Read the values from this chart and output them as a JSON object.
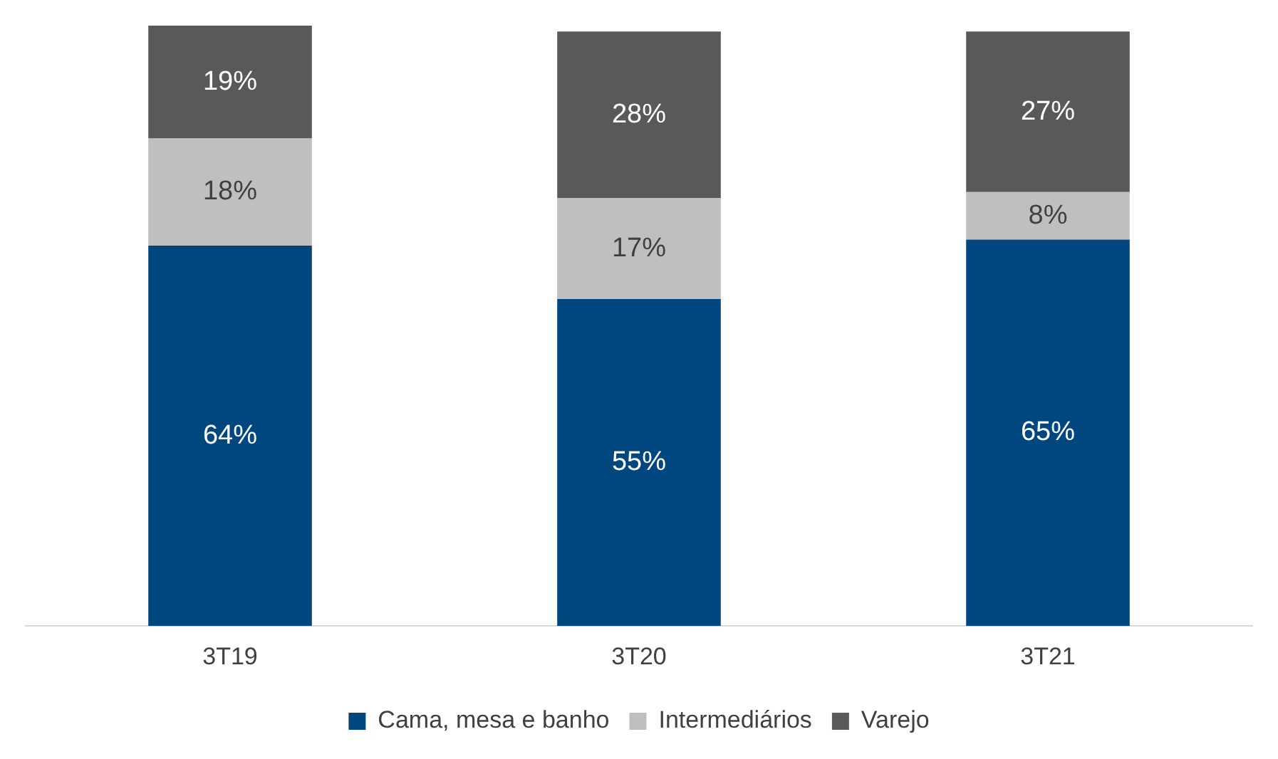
{
  "chart_data": {
    "type": "bar",
    "stacked": true,
    "categories": [
      "3T19",
      "3T20",
      "3T21"
    ],
    "series": [
      {
        "name": "Cama, mesa e banho",
        "color": "#00467f",
        "values": [
          64,
          55,
          65
        ],
        "value_labels": [
          "64%",
          "55%",
          "65%"
        ]
      },
      {
        "name": "Intermediários",
        "color": "#bfbfbf",
        "values": [
          18,
          17,
          8
        ],
        "value_labels": [
          "18%",
          "17%",
          "8%"
        ]
      },
      {
        "name": "Varejo",
        "color": "#595959",
        "values": [
          19,
          28,
          27
        ],
        "value_labels": [
          "19%",
          "28%",
          "27%"
        ]
      }
    ],
    "legend": "bottom",
    "grid": false
  }
}
